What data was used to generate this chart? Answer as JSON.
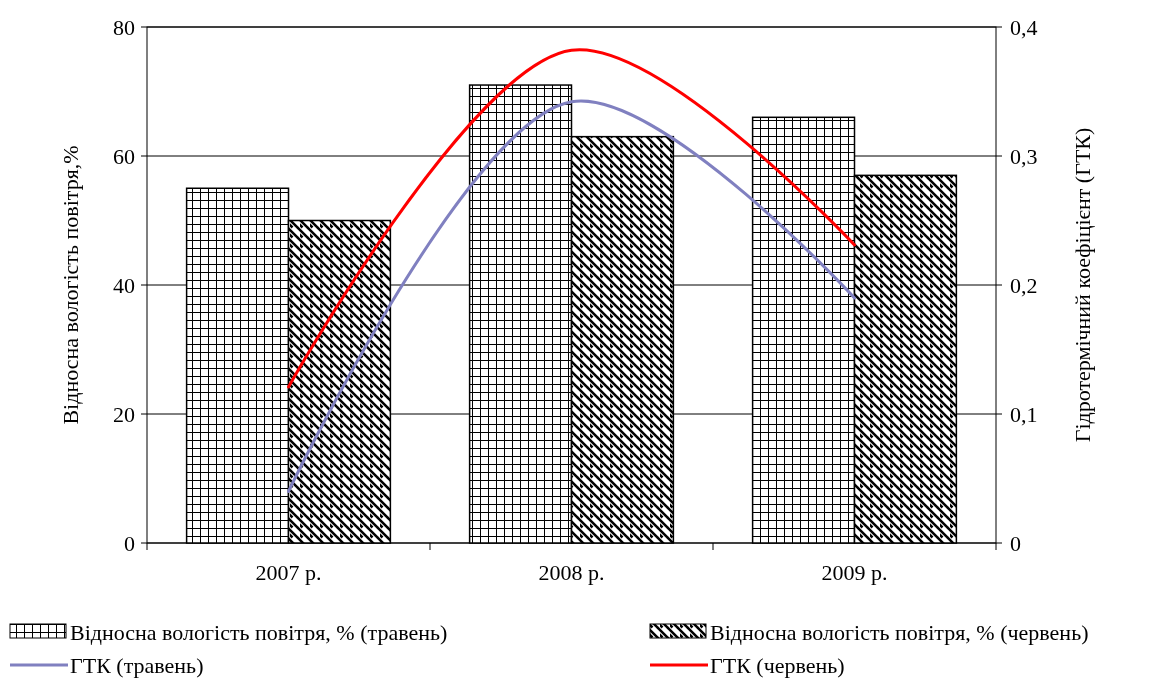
{
  "chart_data": {
    "type": "bar",
    "categories": [
      "2007 р.",
      "2008 р.",
      "2009 р."
    ],
    "ylabel": "Відносна вологість повітря,%",
    "y2label": "Гідротермічний коефіцієнт (ГТК)",
    "ylim": [
      0,
      80
    ],
    "yticks": [
      0,
      20,
      40,
      60,
      80
    ],
    "y2lim": [
      0,
      0.4
    ],
    "y2ticks": [
      0,
      {
        "value": 0.1,
        "label": "0,1"
      },
      {
        "value": 0.2,
        "label": "0,2"
      },
      {
        "value": 0.3,
        "label": "0,3"
      },
      {
        "value": 0.4,
        "label": "0,4"
      }
    ],
    "grid": "y",
    "legend": "bottom",
    "series": [
      {
        "name": "Відносна вологість повітря, % (травень)",
        "color": "#000000",
        "values": [
          55,
          71,
          66
        ]
      },
      {
        "name": "Відносна вологість повітря, % (червень)",
        "color": "#000000",
        "values": [
          50,
          63,
          57
        ]
      },
      {
        "name": "ГТК (травень)",
        "type": "line",
        "axis": "y2",
        "color": "#8080c0",
        "values": [
          0.04,
          0.342,
          0.19
        ]
      },
      {
        "name": "ГТК (червень)",
        "type": "line",
        "axis": "y2",
        "color": "#ff0000",
        "values": [
          0.121,
          0.382,
          0.231
        ]
      }
    ]
  }
}
